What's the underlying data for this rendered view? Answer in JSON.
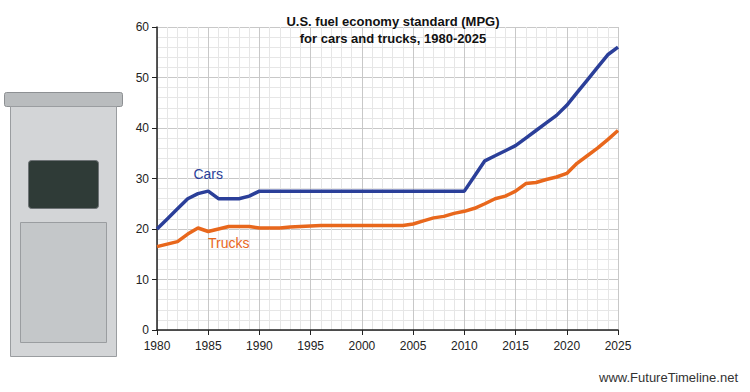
{
  "chart_data": {
    "type": "line",
    "title": "U.S. fuel economy standard (MPG)\nfor cars and trucks, 1980-2025",
    "x": [
      1980,
      1981,
      1982,
      1983,
      1984,
      1985,
      1986,
      1987,
      1988,
      1989,
      1990,
      1991,
      1992,
      1993,
      1994,
      1995,
      1996,
      1997,
      1998,
      1999,
      2000,
      2001,
      2002,
      2003,
      2004,
      2005,
      2006,
      2007,
      2008,
      2009,
      2010,
      2011,
      2012,
      2013,
      2014,
      2015,
      2016,
      2017,
      2018,
      2019,
      2020,
      2021,
      2022,
      2023,
      2024,
      2025
    ],
    "series": [
      {
        "name": "Cars",
        "color": "#2b3f99",
        "values": [
          20,
          22,
          24,
          26,
          27,
          27.5,
          26,
          26,
          26,
          26.5,
          27.5,
          27.5,
          27.5,
          27.5,
          27.5,
          27.5,
          27.5,
          27.5,
          27.5,
          27.5,
          27.5,
          27.5,
          27.5,
          27.5,
          27.5,
          27.5,
          27.5,
          27.5,
          27.5,
          27.5,
          27.5,
          30.5,
          33.5,
          34.5,
          35.5,
          36.5,
          38,
          39.5,
          41,
          42.5,
          44.5,
          47,
          49.5,
          52,
          54.5,
          56
        ]
      },
      {
        "name": "Trucks",
        "color": "#e8671c",
        "values": [
          16.5,
          17,
          17.5,
          19,
          20.2,
          19.5,
          20,
          20.5,
          20.5,
          20.5,
          20.2,
          20.2,
          20.2,
          20.4,
          20.5,
          20.6,
          20.7,
          20.7,
          20.7,
          20.7,
          20.7,
          20.7,
          20.7,
          20.7,
          20.7,
          21,
          21.6,
          22.2,
          22.5,
          23.1,
          23.5,
          24.1,
          25,
          26,
          26.5,
          27.5,
          29,
          29.2,
          29.8,
          30.3,
          31,
          33,
          34.5,
          36,
          37.7,
          39.5
        ]
      }
    ],
    "xlim": [
      1980,
      2025
    ],
    "xticks": [
      1980,
      1985,
      1990,
      1995,
      2000,
      2005,
      2010,
      2015,
      2020,
      2025
    ],
    "ylim": [
      0,
      60
    ],
    "yticks": [
      0,
      10,
      20,
      30,
      40,
      50,
      60
    ],
    "grid": true,
    "annotations": [
      "www.FutureTimeline.net"
    ]
  }
}
